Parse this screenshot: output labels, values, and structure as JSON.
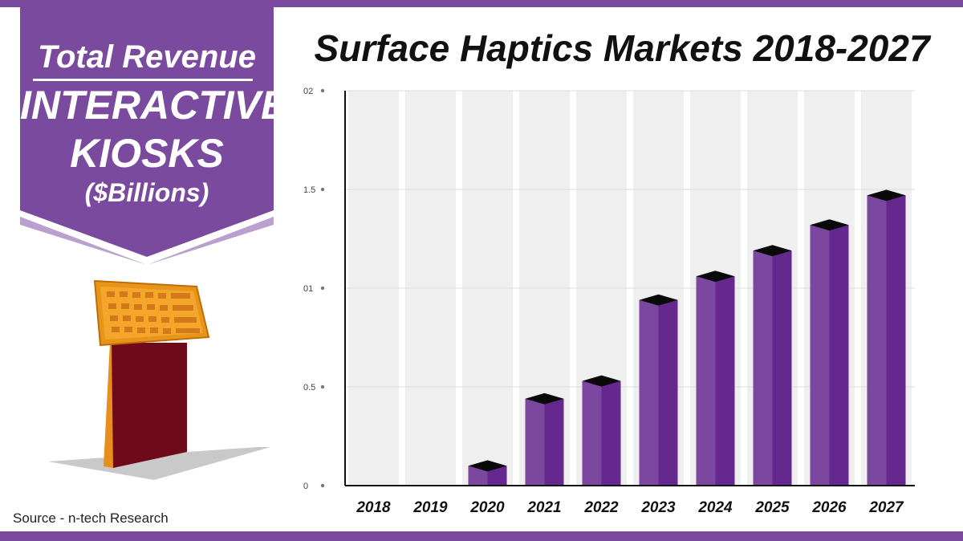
{
  "banner": {
    "line1": "Total Revenue",
    "line2": "INTERACTIVE",
    "line3": "KIOSKS",
    "line4": "($Billions)"
  },
  "source": "Source - n-tech Research",
  "colors": {
    "accent": "#7a4a9e",
    "bar_front": "#7c479e",
    "bar_side": "#65288f",
    "bar_top": "#0a0a0a",
    "column_bg": "#efefef",
    "kiosk_screen": "#f0a020",
    "kiosk_body": "#6e0a1a"
  },
  "chart_data": {
    "type": "bar",
    "title": "Surface Haptics Markets 2018-2027",
    "xlabel": "",
    "ylabel": "",
    "categories": [
      "2018",
      "2019",
      "2020",
      "2021",
      "2022",
      "2023",
      "2024",
      "2025",
      "2026",
      "2027"
    ],
    "values": [
      0,
      0,
      0.1,
      0.44,
      0.53,
      0.94,
      1.06,
      1.19,
      1.32,
      1.47
    ],
    "ylim": [
      0,
      2
    ],
    "yticks": [
      0,
      0.5,
      1,
      1.5,
      2
    ],
    "ytick_labels": [
      "0",
      "0.5",
      "01",
      "1.5",
      "02"
    ],
    "grid": true,
    "legend": "none"
  }
}
